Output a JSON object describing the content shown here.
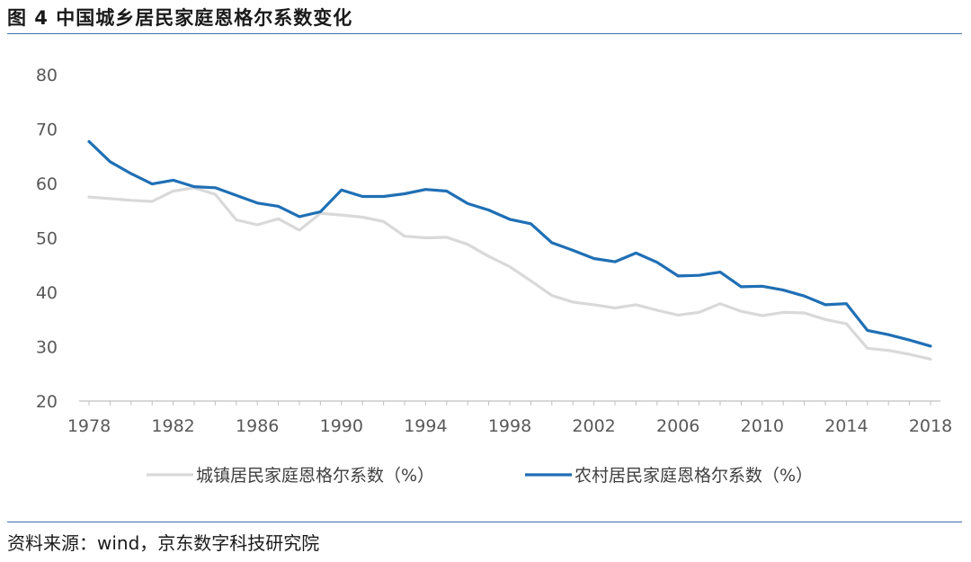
{
  "figure": {
    "title": "图 4  中国城乡居民家庭恩格尔系数变化",
    "source": "资料来源：wind，京东数字科技研究院"
  },
  "chart_data": {
    "type": "line",
    "title": "图 4  中国城乡居民家庭恩格尔系数变化",
    "xlabel": "",
    "ylabel": "",
    "ylim": [
      20,
      80
    ],
    "yticks": [
      20,
      30,
      40,
      50,
      60,
      70,
      80
    ],
    "xlim": [
      1978,
      2018
    ],
    "xticks": [
      "1978",
      "1982",
      "1986",
      "1990",
      "1994",
      "1998",
      "2002",
      "2006",
      "2010",
      "2014",
      "2018"
    ],
    "grid": false,
    "legend_position": "bottom",
    "x": [
      1978,
      1979,
      1980,
      1981,
      1982,
      1983,
      1984,
      1985,
      1986,
      1987,
      1988,
      1989,
      1990,
      1991,
      1992,
      1993,
      1994,
      1995,
      1996,
      1997,
      1998,
      1999,
      2000,
      2001,
      2002,
      2003,
      2004,
      2005,
      2006,
      2007,
      2008,
      2009,
      2010,
      2011,
      2012,
      2013,
      2014,
      2015,
      2016,
      2017,
      2018
    ],
    "series": [
      {
        "name": "城镇居民家庭恩格尔系数（%）",
        "color": "#d9d9d9",
        "values": [
          57.5,
          57.2,
          56.9,
          56.7,
          58.6,
          59.2,
          58.0,
          53.3,
          52.4,
          53.5,
          51.4,
          54.5,
          54.2,
          53.8,
          53.0,
          50.3,
          50.0,
          50.1,
          48.8,
          46.6,
          44.7,
          42.1,
          39.4,
          38.2,
          37.7,
          37.1,
          37.7,
          36.7,
          35.8,
          36.3,
          37.9,
          36.5,
          35.7,
          36.3,
          36.2,
          35.0,
          34.2,
          29.7,
          29.3,
          28.6,
          27.7
        ]
      },
      {
        "name": "农村居民家庭恩格尔系数（%）",
        "color": "#1f6fb5",
        "values": [
          67.7,
          64.0,
          61.8,
          59.9,
          60.6,
          59.4,
          59.2,
          57.8,
          56.4,
          55.8,
          53.9,
          54.8,
          58.8,
          57.6,
          57.6,
          58.1,
          58.9,
          58.6,
          56.3,
          55.1,
          53.4,
          52.6,
          49.1,
          47.7,
          46.2,
          45.6,
          47.2,
          45.5,
          43.0,
          43.1,
          43.7,
          41.0,
          41.1,
          40.4,
          39.3,
          37.7,
          37.9,
          33.0,
          32.2,
          31.2,
          30.1
        ]
      }
    ]
  }
}
